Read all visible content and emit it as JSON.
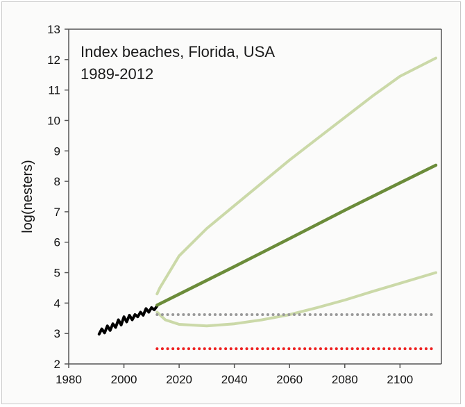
{
  "chart_data": {
    "type": "line",
    "title": "",
    "annotation_lines": [
      "Index beaches, Florida, USA",
      "1989-2012"
    ],
    "xlabel": "",
    "ylabel": "log(nesters)",
    "xlim": [
      1980,
      2115
    ],
    "ylim": [
      2,
      13
    ],
    "xticks": [
      1980,
      2000,
      2020,
      2040,
      2060,
      2080,
      2100
    ],
    "yticks": [
      2,
      3,
      4,
      5,
      6,
      7,
      8,
      9,
      10,
      11,
      12,
      13
    ],
    "grid": false,
    "legend": "none",
    "series": [
      {
        "color": "#000000",
        "style": "solid",
        "x": [
          1991,
          1992,
          1993,
          1994,
          1995,
          1996,
          1997,
          1998,
          1999,
          2000,
          2001,
          2002,
          2003,
          2004,
          2005,
          2006,
          2007,
          2008,
          2009,
          2010,
          2011,
          2012
        ],
        "y": [
          2.98,
          3.15,
          3.02,
          3.25,
          3.1,
          3.32,
          3.2,
          3.45,
          3.28,
          3.55,
          3.38,
          3.6,
          3.45,
          3.62,
          3.55,
          3.7,
          3.6,
          3.82,
          3.7,
          3.85,
          3.78,
          3.9
        ]
      },
      {
        "color": "#6b8c3a",
        "style": "solid",
        "x": [
          2012,
          2040,
          2060,
          2080,
          2100,
          2113
        ],
        "y": [
          3.93,
          5.2,
          6.12,
          7.05,
          7.95,
          8.53
        ]
      },
      {
        "color": "#cbd9a8",
        "style": "solid",
        "x": [
          2012,
          2013,
          2020,
          2030,
          2040,
          2050,
          2060,
          2070,
          2080,
          2090,
          2100,
          2113
        ],
        "y": [
          4.3,
          4.5,
          5.55,
          6.45,
          7.2,
          7.95,
          8.7,
          9.4,
          10.1,
          10.8,
          11.45,
          12.05
        ]
      },
      {
        "color": "#cbd9a8",
        "style": "solid",
        "x": [
          2012,
          2015,
          2020,
          2030,
          2040,
          2050,
          2060,
          2070,
          2080,
          2090,
          2100,
          2113
        ],
        "y": [
          3.7,
          3.45,
          3.3,
          3.25,
          3.32,
          3.45,
          3.62,
          3.85,
          4.1,
          4.38,
          4.65,
          5.0
        ]
      },
      {
        "color": "#999999",
        "style": "dotted",
        "x": [
          2012,
          2113
        ],
        "y": [
          3.62,
          3.62
        ]
      },
      {
        "color": "#ee2222",
        "style": "dotted",
        "x": [
          2012,
          2113
        ],
        "y": [
          2.5,
          2.5
        ]
      }
    ]
  }
}
